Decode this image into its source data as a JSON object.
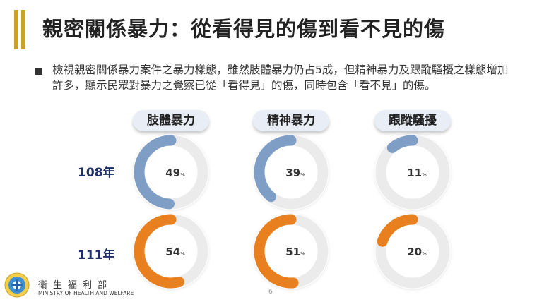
{
  "slide": {
    "title": "親密關係暴力：從看得見的傷到看不見的傷",
    "bullet": "檢視親密關係暴力案件之暴力樣態，雖然肢體暴力仍占5成，但精神暴力及跟蹤騷擾之樣態增加許多，顯示民眾對暴力之覺察已從「看得見」的傷，同時包含「看不見」的傷。",
    "page_number": "6"
  },
  "categories": [
    "肢體暴力",
    "精神暴力",
    "跟蹤騷擾"
  ],
  "rows": [
    {
      "label": "108年",
      "color": "#7f9ec5",
      "values": [
        49,
        39,
        11
      ]
    },
    {
      "label": "111年",
      "color": "#e8801f",
      "values": [
        54,
        51,
        20
      ]
    }
  ],
  "percent_unit": "%",
  "colors": {
    "accent_bar": "#c9a227",
    "row_label": "#1f2f6b",
    "ring_track": "#ebebeb"
  },
  "footer": {
    "org_cn": "衛生福利部",
    "org_en": "MINISTRY OF HEALTH AND WELFARE",
    "logo_icon": "ministry-emblem-icon"
  }
}
